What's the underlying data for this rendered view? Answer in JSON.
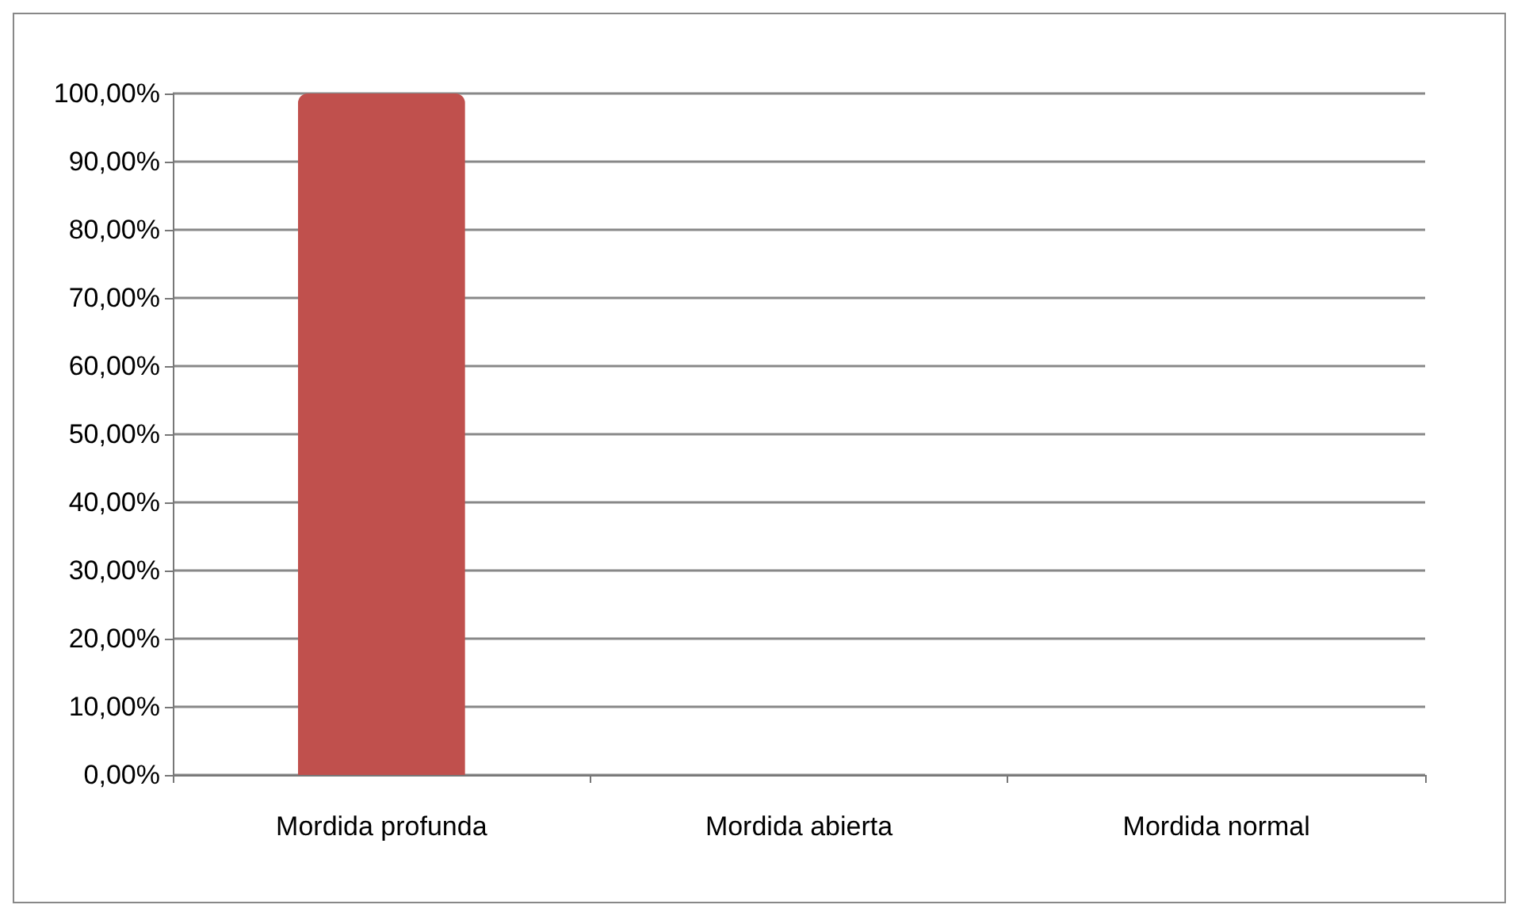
{
  "chart_data": {
    "type": "bar",
    "categories": [
      "Mordida profunda",
      "Mordida abierta",
      "Mordida normal"
    ],
    "values": [
      100,
      0,
      0
    ],
    "color": "#c0504d",
    "ylim": [
      0,
      100
    ],
    "yticks": [
      {
        "value": 0,
        "label": "0,00%"
      },
      {
        "value": 10,
        "label": "10,00%"
      },
      {
        "value": 20,
        "label": "20,00%"
      },
      {
        "value": 30,
        "label": "30,00%"
      },
      {
        "value": 40,
        "label": "40,00%"
      },
      {
        "value": 50,
        "label": "50,00%"
      },
      {
        "value": 60,
        "label": "60,00%"
      },
      {
        "value": 70,
        "label": "70,00%"
      },
      {
        "value": 80,
        "label": "80,00%"
      },
      {
        "value": 90,
        "label": "90,00%"
      },
      {
        "value": 100,
        "label": "100,00%"
      }
    ],
    "grid": "y"
  }
}
